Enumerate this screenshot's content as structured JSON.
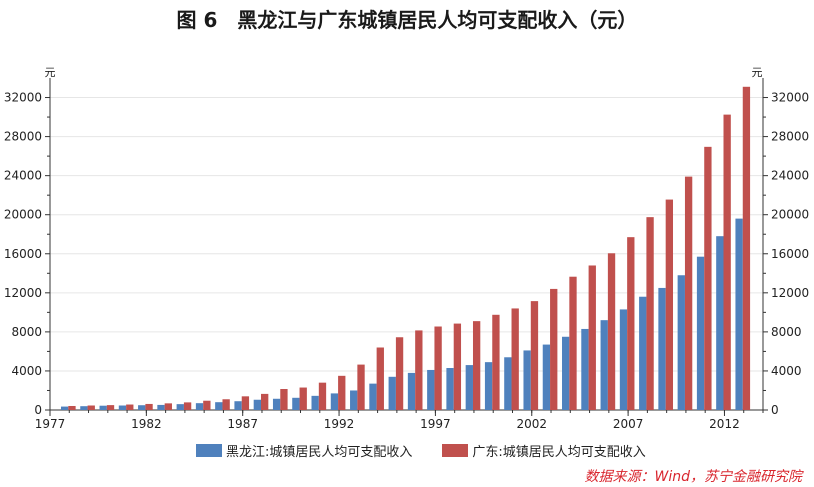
{
  "page_title": "图 6　黑龙江与广东城镇居民人均可支配收入（元）",
  "source_note": "数据来源：Wind，苏宁金融研究院",
  "chart_data": {
    "type": "bar",
    "title": "图 6　黑龙江与广东城镇居民人均可支配收入（元）",
    "ylabel_left": "元",
    "ylabel_right": "元",
    "ylim": [
      0,
      34000
    ],
    "yticks": [
      0,
      4000,
      8000,
      12000,
      16000,
      20000,
      24000,
      28000,
      32000
    ],
    "xticks": [
      1977,
      1982,
      1987,
      1992,
      1997,
      2002,
      2007,
      2012
    ],
    "x_range": [
      1977,
      2014
    ],
    "categories": [
      1978,
      1979,
      1980,
      1981,
      1982,
      1983,
      1984,
      1985,
      1986,
      1987,
      1988,
      1989,
      1990,
      1991,
      1992,
      1993,
      1994,
      1995,
      1996,
      1997,
      1998,
      1999,
      2000,
      2001,
      2002,
      2003,
      2004,
      2005,
      2006,
      2007,
      2008,
      2009,
      2010,
      2011,
      2012,
      2013
    ],
    "series": [
      {
        "name": "黑龙江:城镇居民人均可支配收入",
        "color": "#4f81bd",
        "values": [
          350,
          390,
          440,
          460,
          490,
          520,
          600,
          700,
          800,
          900,
          1050,
          1150,
          1250,
          1450,
          1700,
          2000,
          2700,
          3400,
          3800,
          4100,
          4300,
          4600,
          4900,
          5400,
          6100,
          6700,
          7500,
          8300,
          9200,
          10300,
          11600,
          12500,
          13800,
          15700,
          17800,
          19600
        ]
      },
      {
        "name": "广东:城镇居民人均可支配收入",
        "color": "#c0504d",
        "values": [
          410,
          460,
          500,
          560,
          620,
          680,
          780,
          950,
          1100,
          1400,
          1650,
          2150,
          2300,
          2800,
          3500,
          4650,
          6400,
          7450,
          8150,
          8550,
          8850,
          9100,
          9750,
          10400,
          11150,
          12400,
          13650,
          14800,
          16050,
          17700,
          19750,
          21550,
          23900,
          26950,
          30250,
          33100
        ]
      }
    ],
    "legend_position": "bottom"
  }
}
